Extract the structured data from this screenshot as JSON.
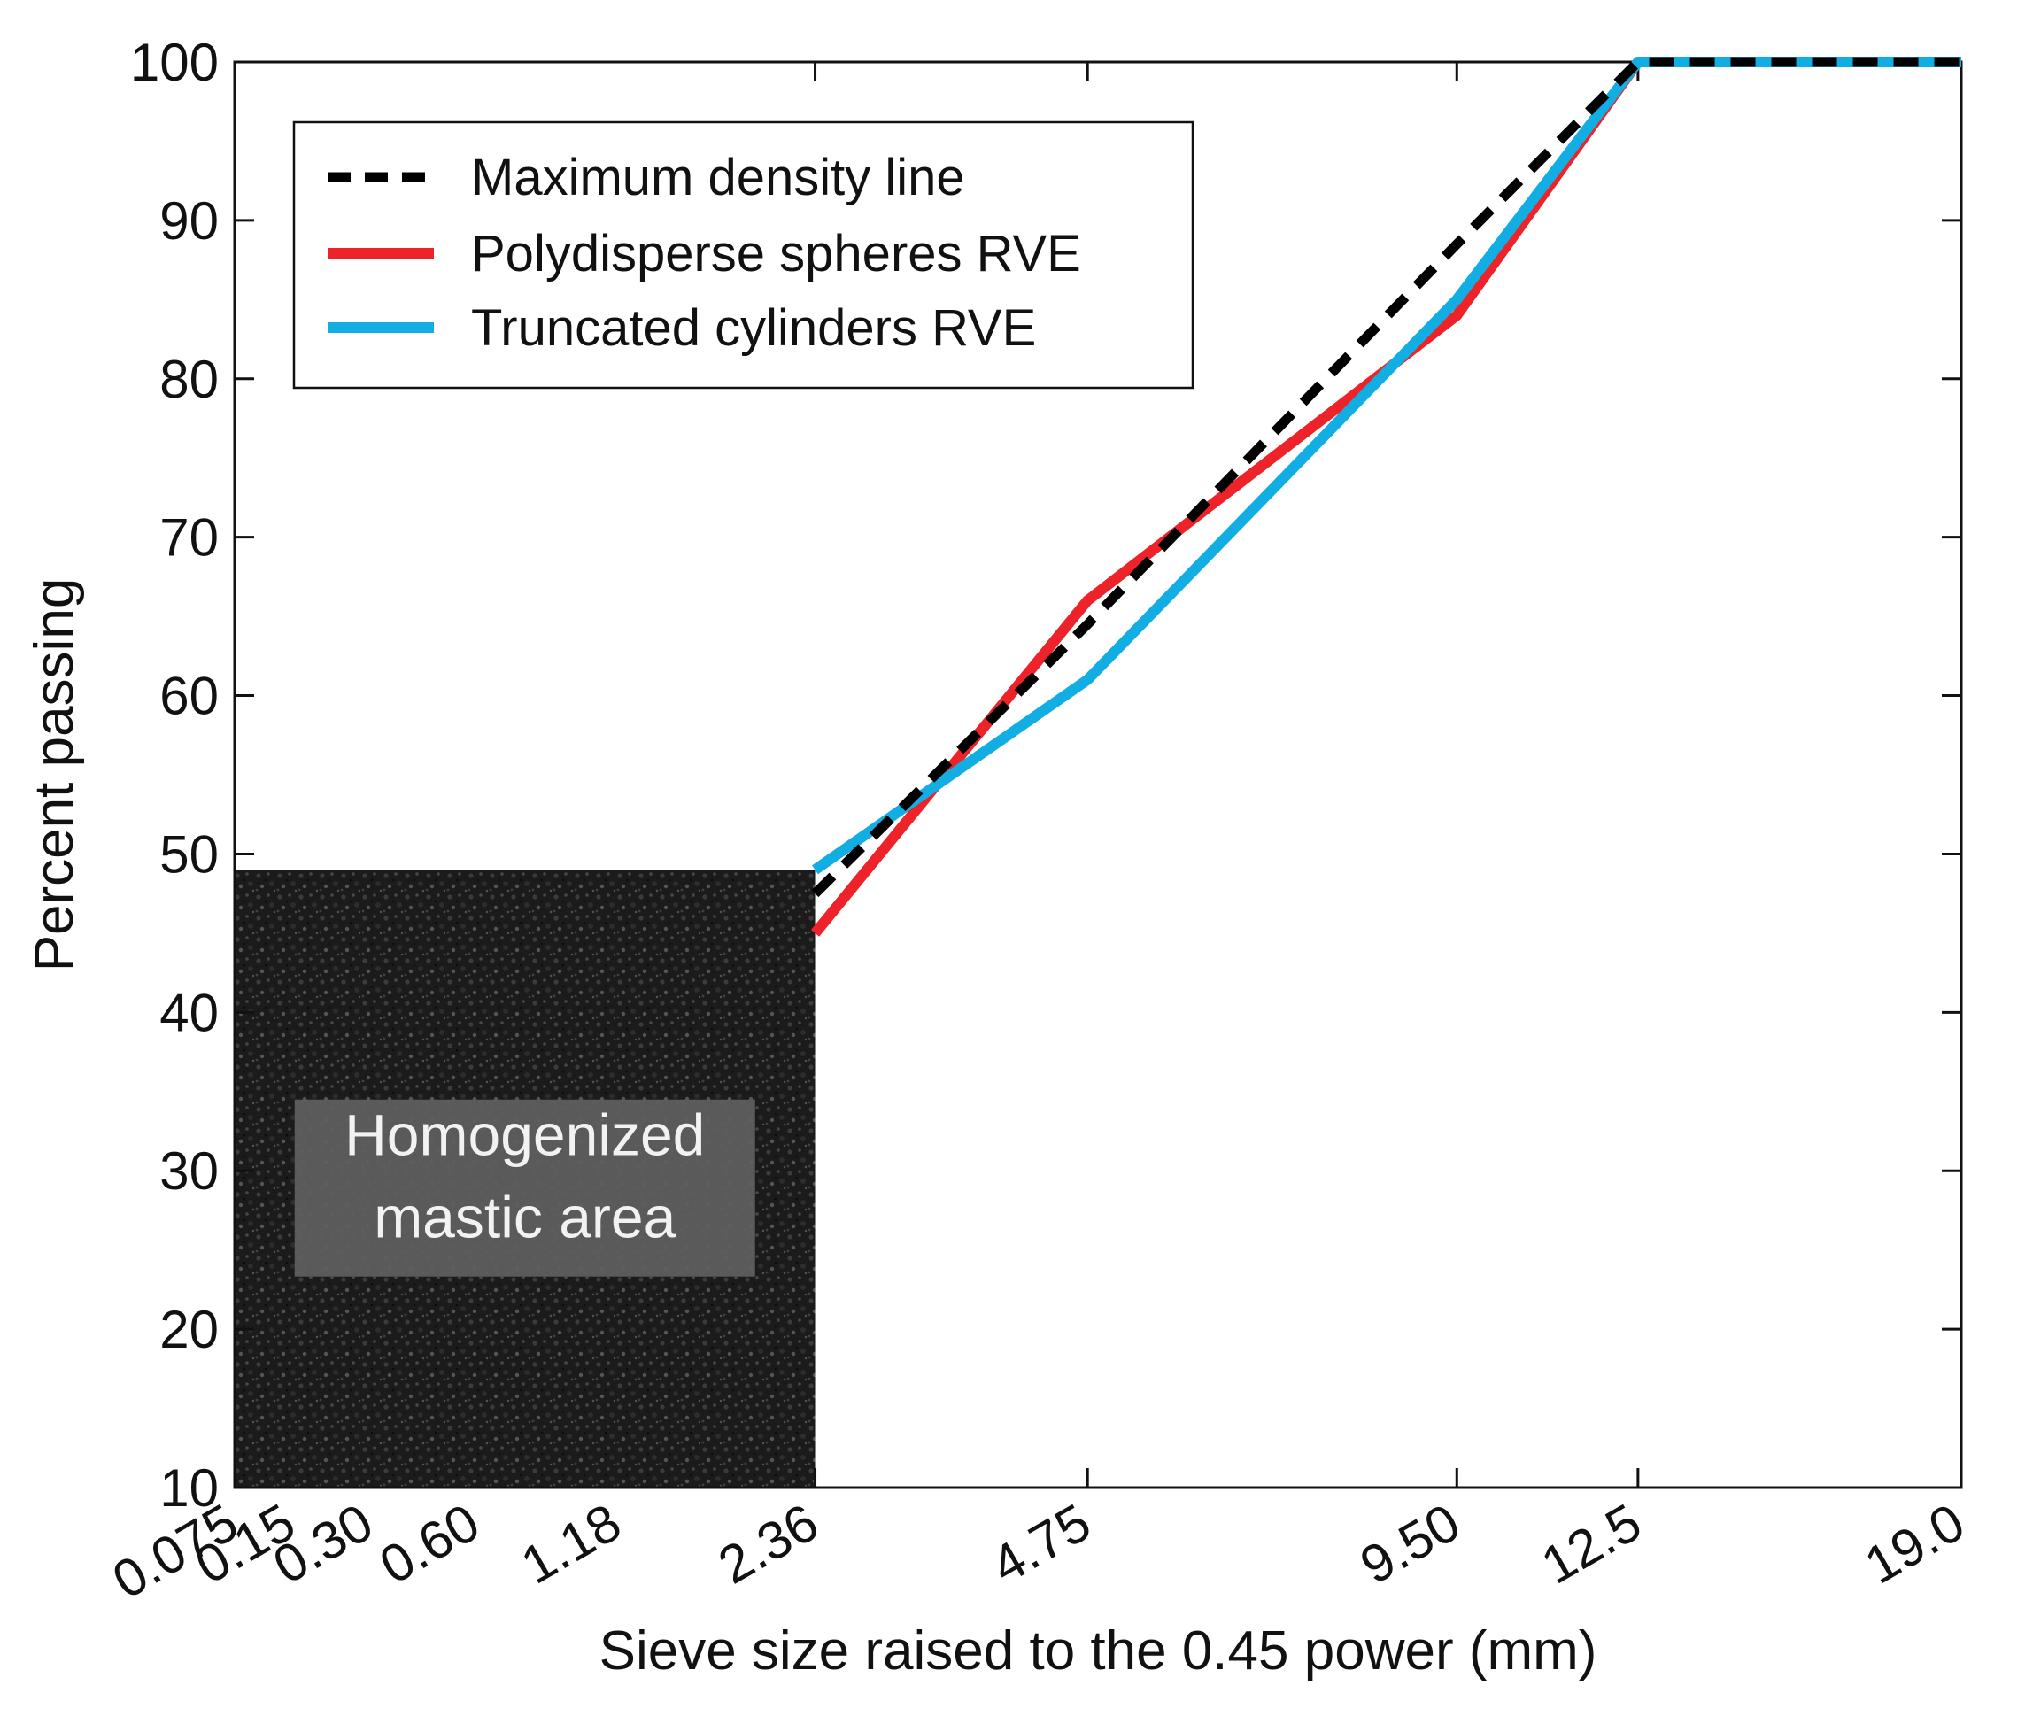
{
  "chart_data": {
    "type": "line",
    "title": "",
    "xlabel": "Sieve size raised to the 0.45 power (mm)",
    "ylabel": "Percent passing",
    "x_scale": "power_0.45",
    "xlim": [
      0.075,
      19.0
    ],
    "ylim": [
      10,
      100
    ],
    "x_tick_labels": [
      "0.075",
      "0.15",
      "0.30",
      "0.60",
      "1.18",
      "2.36",
      "4.75",
      "9.50",
      "12.5",
      "19.0"
    ],
    "x_tick_values": [
      0.075,
      0.15,
      0.3,
      0.6,
      1.18,
      2.36,
      4.75,
      9.5,
      12.5,
      19.0
    ],
    "x_major_ticks": [
      2.36,
      4.75,
      9.5,
      12.5,
      19.0
    ],
    "y_ticks": [
      10,
      20,
      30,
      40,
      50,
      60,
      70,
      80,
      90,
      100
    ],
    "legend_position": "top-left",
    "series": [
      {
        "name": "Maximum density line",
        "color": "#000000",
        "style": "dashed",
        "points": [
          [
            2.36,
            47.5
          ],
          [
            4.75,
            64.5
          ],
          [
            9.5,
            88.5
          ],
          [
            12.5,
            100
          ],
          [
            19.0,
            100
          ]
        ]
      },
      {
        "name": "Polydisperse spheres RVE",
        "color": "#ee2229",
        "style": "solid",
        "points": [
          [
            2.36,
            45
          ],
          [
            4.75,
            66
          ],
          [
            9.5,
            84
          ],
          [
            12.5,
            100
          ],
          [
            19.0,
            100
          ]
        ]
      },
      {
        "name": "Truncated cylinders RVE",
        "color": "#12aee3",
        "style": "solid",
        "points": [
          [
            2.36,
            49
          ],
          [
            4.75,
            61
          ],
          [
            9.5,
            85
          ],
          [
            12.5,
            100
          ],
          [
            19.0,
            100
          ]
        ]
      }
    ],
    "annotations": [
      {
        "text_lines": [
          "Homogenized",
          "mastic area"
        ],
        "region": {
          "x_from": 0.075,
          "x_to": 2.36,
          "y_from": 10,
          "y_to": 49
        }
      }
    ]
  }
}
